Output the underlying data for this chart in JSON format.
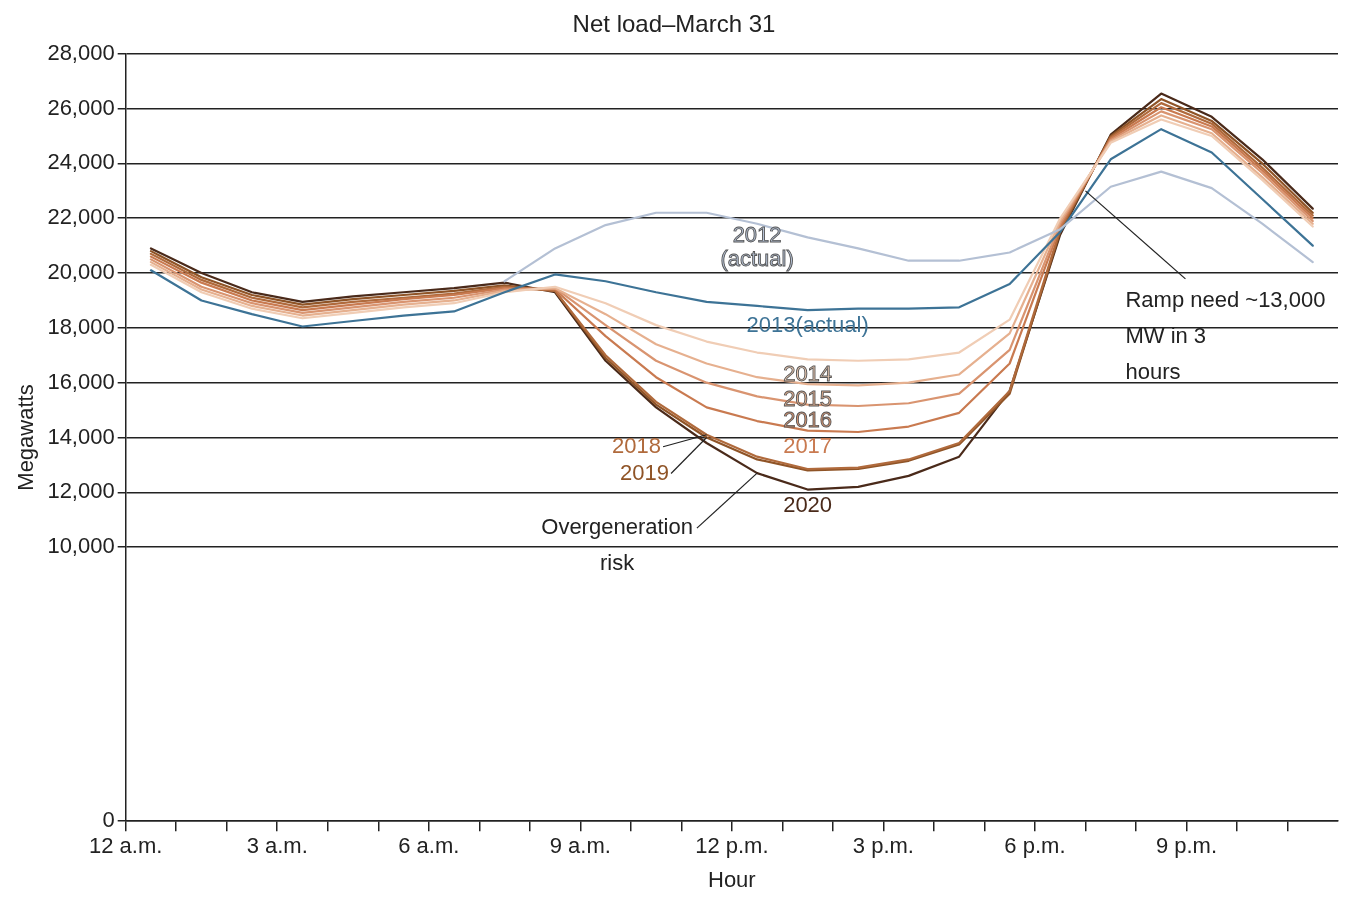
{
  "chart_data": {
    "type": "line",
    "title": "Net load–March 31",
    "xlabel": "Hour",
    "ylabel": "Megawatts",
    "x": [
      "--03-31T00:30",
      "--03-31T01:30",
      "--03-31T02:30",
      "--03-31T03:30",
      "--03-31T04:30",
      "--03-31T05:30",
      "--03-31T06:30",
      "--03-31T07:30",
      "--03-31T08:30",
      "--03-31T09:30",
      "--03-31T10:30",
      "--03-31T11:30",
      "--03-31T12:30",
      "--03-31T13:30",
      "--03-31T14:30",
      "--03-31T15:30",
      "--03-31T16:30",
      "--03-31T17:30",
      "--03-31T18:30",
      "--03-31T19:30",
      "--03-31T20:30",
      "--03-31T21:30",
      "--03-31T22:30",
      "--03-31T23:30"
    ],
    "xlim": [
      "--03-31T00:00",
      "--04-01T00:00"
    ],
    "xticks": [
      {
        "value": "--03-31T00:00",
        "label": "12 a.m."
      },
      {
        "value": "--03-31T01:00",
        "label": null
      },
      {
        "value": "--03-31T02:00",
        "label": null
      },
      {
        "value": "--03-31T03:00",
        "label": "3 a.m."
      },
      {
        "value": "--03-31T04:00",
        "label": null
      },
      {
        "value": "--03-31T05:00",
        "label": null
      },
      {
        "value": "--03-31T06:00",
        "label": "6 a.m."
      },
      {
        "value": "--03-31T07:00",
        "label": null
      },
      {
        "value": "--03-31T08:00",
        "label": null
      },
      {
        "value": "--03-31T09:00",
        "label": "9 a.m."
      },
      {
        "value": "--03-31T10:00",
        "label": null
      },
      {
        "value": "--03-31T11:00",
        "label": null
      },
      {
        "value": "--03-31T12:00",
        "label": "12 p.m."
      },
      {
        "value": "--03-31T13:00",
        "label": null
      },
      {
        "value": "--03-31T14:00",
        "label": null
      },
      {
        "value": "--03-31T15:00",
        "label": "3 p.m."
      },
      {
        "value": "--03-31T16:00",
        "label": null
      },
      {
        "value": "--03-31T17:00",
        "label": null
      },
      {
        "value": "--03-31T18:00",
        "label": "6 p.m."
      },
      {
        "value": "--03-31T19:00",
        "label": null
      },
      {
        "value": "--03-31T20:00",
        "label": null
      },
      {
        "value": "--03-31T21:00",
        "label": "9 p.m."
      },
      {
        "value": "--03-31T22:00",
        "label": null
      },
      {
        "value": "--03-31T23:00",
        "label": null
      }
    ],
    "ylim": [
      0,
      28000
    ],
    "yticks": [
      0,
      {
        "value": 10000,
        "label": "10,000"
      },
      {
        "value": 12000,
        "label": "12,000"
      },
      {
        "value": 14000,
        "label": "14,000"
      },
      {
        "value": 16000,
        "label": "16,000"
      },
      {
        "value": 18000,
        "label": "18,000"
      },
      {
        "value": 20000,
        "label": "20,000"
      },
      {
        "value": 22000,
        "label": "22,000"
      },
      {
        "value": 24000,
        "label": "24,000"
      },
      {
        "value": 26000,
        "label": "26,000"
      },
      {
        "value": 28000,
        "label": "28,000"
      }
    ],
    "grid": "y",
    "legend": false,
    "marker": "none",
    "line_style": "solid",
    "series": [
      {
        "name": "2012 (actual)",
        "color": "#b4c0d4",
        "values": [
          null,
          null,
          null,
          null,
          null,
          null,
          null,
          19700,
          20900,
          21750,
          22200,
          22200,
          21800,
          21300,
          20900,
          20450,
          20450,
          20750,
          21600,
          23150,
          23700,
          23100,
          21800,
          20400
        ]
      },
      {
        "name": "2013(actual)",
        "color": "#3d7396",
        "values": [
          20100,
          19000,
          18500,
          18050,
          18250,
          18450,
          18600,
          19300,
          19950,
          19700,
          19300,
          18950,
          18800,
          18650,
          18700,
          18700,
          18750,
          19600,
          21500,
          24150,
          25250,
          24400,
          22700,
          21000
        ]
      },
      {
        "name": "2014",
        "color": "#f0cdb5",
        "values": [
          20300,
          19300,
          18700,
          18350,
          18550,
          18750,
          18900,
          19300,
          19500,
          18900,
          18100,
          17500,
          17100,
          16850,
          16800,
          16850,
          17100,
          18300,
          22000,
          24750,
          25600,
          25000,
          23400,
          21700
        ]
      },
      {
        "name": "2015",
        "color": "#e6b08f",
        "values": [
          20400,
          19400,
          18800,
          18450,
          18650,
          18850,
          19000,
          19350,
          19450,
          18500,
          17400,
          16700,
          16200,
          15950,
          15900,
          16000,
          16300,
          17800,
          21900,
          24800,
          25750,
          25100,
          23500,
          21800
        ]
      },
      {
        "name": "2016",
        "color": "#d99470",
        "values": [
          20500,
          19500,
          18900,
          18550,
          18750,
          18950,
          19100,
          19400,
          19450,
          18100,
          16800,
          16000,
          15500,
          15200,
          15150,
          15250,
          15600,
          17200,
          21800,
          24850,
          25900,
          25250,
          23650,
          21900
        ]
      },
      {
        "name": "2017",
        "color": "#c97a50",
        "values": [
          20600,
          19650,
          19000,
          18650,
          18850,
          19050,
          19200,
          19450,
          19400,
          17700,
          16200,
          15100,
          14600,
          14250,
          14200,
          14400,
          14900,
          16700,
          21700,
          24900,
          26050,
          25350,
          23750,
          22000
        ]
      },
      {
        "name": "2018",
        "color": "#b06a3c",
        "values": [
          20700,
          19750,
          19100,
          18750,
          18950,
          19100,
          19250,
          19500,
          19350,
          17000,
          15300,
          14100,
          13300,
          12850,
          12900,
          13200,
          13800,
          15700,
          21600,
          24950,
          26200,
          25450,
          23850,
          22100
        ]
      },
      {
        "name": "2019",
        "color": "#8f5427",
        "values": [
          20800,
          19850,
          19200,
          18850,
          19050,
          19200,
          19350,
          19550,
          19350,
          16900,
          15200,
          14000,
          13200,
          12800,
          12850,
          13150,
          13750,
          15600,
          21500,
          25000,
          26350,
          25550,
          24000,
          22200
        ]
      },
      {
        "name": "2020",
        "color": "#4a2a1a",
        "values": [
          20900,
          20000,
          19300,
          18950,
          19150,
          19300,
          19450,
          19650,
          19300,
          16800,
          15100,
          13800,
          12700,
          12100,
          12200,
          12600,
          13300,
          15700,
          21400,
          25050,
          26550,
          25700,
          24150,
          22350
        ]
      }
    ],
    "annotations": [
      {
        "text": "Overgeneration risk",
        "x": "--03-31T12:30",
        "y": 12700
      },
      {
        "text": "Ramp need ~13,000 MW in 3 hours",
        "x": "--03-31T19:00",
        "y": 23000
      }
    ]
  }
}
